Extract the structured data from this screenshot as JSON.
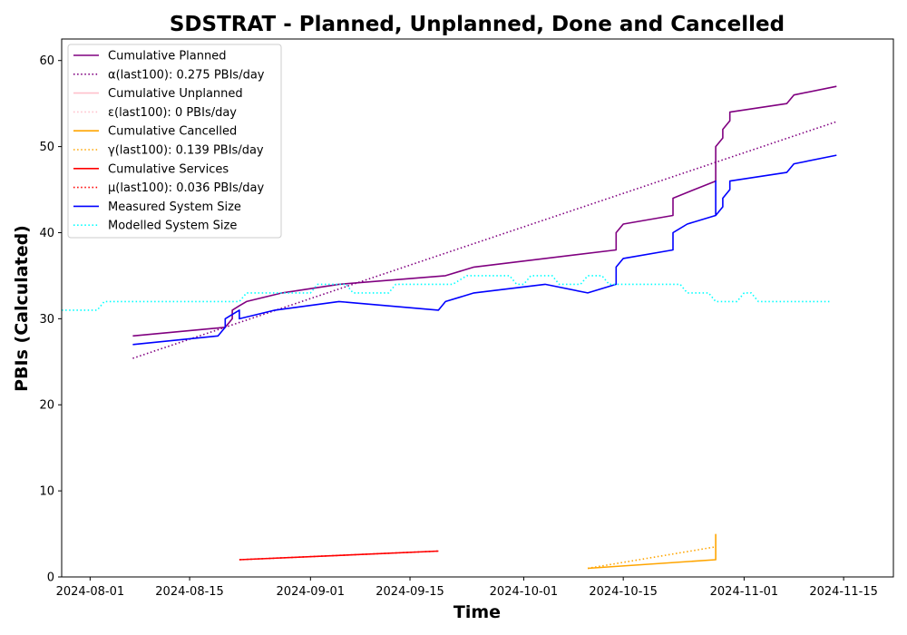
{
  "chart_data": {
    "type": "line",
    "title": "SDSTRAT - Planned, Unplanned, Done  and Cancelled",
    "xlabel": "Time",
    "ylabel": "PBIs (Calculated)",
    "xlim": [
      "2024-07-28",
      "2024-11-22"
    ],
    "ylim": [
      0,
      62.5
    ],
    "x_ticks": [
      "2024-08-01",
      "2024-08-15",
      "2024-09-01",
      "2024-09-15",
      "2024-10-01",
      "2024-10-15",
      "2024-11-01",
      "2024-11-15"
    ],
    "y_ticks": [
      0,
      10,
      20,
      30,
      40,
      50,
      60
    ],
    "grid": false,
    "legend_position": "top-left",
    "series": [
      {
        "name": "Cumulative Planned",
        "color": "#800080",
        "style": "solid",
        "points": [
          [
            "2024-08-07",
            28
          ],
          [
            "2024-08-20",
            29
          ],
          [
            "2024-08-21",
            30
          ],
          [
            "2024-08-21",
            31
          ],
          [
            "2024-08-22",
            31.5
          ],
          [
            "2024-08-23",
            32
          ],
          [
            "2024-08-28",
            33
          ],
          [
            "2024-09-05",
            34
          ],
          [
            "2024-09-20",
            35
          ],
          [
            "2024-09-24",
            36
          ],
          [
            "2024-10-14",
            38
          ],
          [
            "2024-10-14",
            40
          ],
          [
            "2024-10-15",
            41
          ],
          [
            "2024-10-22",
            42
          ],
          [
            "2024-10-22",
            44
          ],
          [
            "2024-10-25",
            45
          ],
          [
            "2024-10-28",
            46
          ],
          [
            "2024-10-28",
            50
          ],
          [
            "2024-10-29",
            51
          ],
          [
            "2024-10-29",
            52
          ],
          [
            "2024-10-30",
            53
          ],
          [
            "2024-10-30",
            54
          ],
          [
            "2024-11-07",
            55
          ],
          [
            "2024-11-08",
            56
          ],
          [
            "2024-11-14",
            57
          ]
        ]
      },
      {
        "name": "α(last100): 0.275 PBIs/day",
        "color": "#800080",
        "style": "dotted",
        "points": [
          [
            "2024-08-07",
            25.4
          ],
          [
            "2024-11-14",
            52.9
          ]
        ]
      },
      {
        "name": "Cumulative Unplanned",
        "color": "#ffc0cb",
        "style": "solid",
        "points": []
      },
      {
        "name": "ε(last100): 0 PBIs/day",
        "color": "#ffc0cb",
        "style": "dotted",
        "points": []
      },
      {
        "name": "Cumulative Cancelled",
        "color": "#ffa500",
        "style": "solid",
        "points": [
          [
            "2024-10-10",
            1
          ],
          [
            "2024-10-28",
            2
          ],
          [
            "2024-10-28",
            5
          ]
        ]
      },
      {
        "name": "γ(last100): 0.139 PBIs/day",
        "color": "#ffa500",
        "style": "dotted",
        "points": [
          [
            "2024-10-10",
            1
          ],
          [
            "2024-10-28",
            3.5
          ]
        ]
      },
      {
        "name": "Cumulative Services",
        "color": "#ff0000",
        "style": "solid",
        "points": [
          [
            "2024-08-22",
            2
          ],
          [
            "2024-09-19",
            3
          ]
        ]
      },
      {
        "name": "μ(last100): 0.036 PBIs/day",
        "color": "#ff0000",
        "style": "dotted",
        "points": [
          [
            "2024-08-22",
            2
          ],
          [
            "2024-09-19",
            3
          ]
        ]
      },
      {
        "name": "Measured System Size",
        "color": "#0000ff",
        "style": "solid",
        "points": [
          [
            "2024-08-07",
            27
          ],
          [
            "2024-08-19",
            28
          ],
          [
            "2024-08-20",
            29
          ],
          [
            "2024-08-20",
            30
          ],
          [
            "2024-08-22",
            31
          ],
          [
            "2024-08-22",
            30
          ],
          [
            "2024-08-27",
            31
          ],
          [
            "2024-09-05",
            32
          ],
          [
            "2024-09-19",
            31
          ],
          [
            "2024-09-20",
            32
          ],
          [
            "2024-09-24",
            33
          ],
          [
            "2024-10-04",
            34
          ],
          [
            "2024-10-10",
            33
          ],
          [
            "2024-10-14",
            34
          ],
          [
            "2024-10-14",
            36
          ],
          [
            "2024-10-15",
            37
          ],
          [
            "2024-10-22",
            38
          ],
          [
            "2024-10-22",
            40
          ],
          [
            "2024-10-24",
            41
          ],
          [
            "2024-10-28",
            42
          ],
          [
            "2024-10-28",
            46
          ],
          [
            "2024-10-28",
            42
          ],
          [
            "2024-10-29",
            43
          ],
          [
            "2024-10-29",
            44
          ],
          [
            "2024-10-30",
            45
          ],
          [
            "2024-10-30",
            46
          ],
          [
            "2024-11-07",
            47
          ],
          [
            "2024-11-08",
            48
          ],
          [
            "2024-11-14",
            49
          ]
        ]
      },
      {
        "name": "Modelled System Size",
        "color": "#00ffff",
        "style": "dotted",
        "points": [
          [
            "2024-07-28",
            31
          ],
          [
            "2024-08-02",
            31
          ],
          [
            "2024-08-03",
            32
          ],
          [
            "2024-08-22",
            32
          ],
          [
            "2024-08-23",
            33
          ],
          [
            "2024-09-01",
            33
          ],
          [
            "2024-09-02",
            34
          ],
          [
            "2024-09-06",
            34
          ],
          [
            "2024-09-07",
            33
          ],
          [
            "2024-09-12",
            33
          ],
          [
            "2024-09-13",
            34
          ],
          [
            "2024-09-21",
            34
          ],
          [
            "2024-09-23",
            35
          ],
          [
            "2024-09-29",
            35
          ],
          [
            "2024-09-30",
            34
          ],
          [
            "2024-10-01",
            34
          ],
          [
            "2024-10-02",
            35
          ],
          [
            "2024-10-05",
            35
          ],
          [
            "2024-10-06",
            34
          ],
          [
            "2024-10-09",
            34
          ],
          [
            "2024-10-10",
            35
          ],
          [
            "2024-10-12",
            35
          ],
          [
            "2024-10-13",
            34
          ],
          [
            "2024-10-23",
            34
          ],
          [
            "2024-10-24",
            33
          ],
          [
            "2024-10-27",
            33
          ],
          [
            "2024-10-28",
            32
          ],
          [
            "2024-10-31",
            32
          ],
          [
            "2024-11-01",
            33
          ],
          [
            "2024-11-02",
            33
          ],
          [
            "2024-11-03",
            32
          ],
          [
            "2024-11-13",
            32
          ]
        ]
      }
    ]
  }
}
